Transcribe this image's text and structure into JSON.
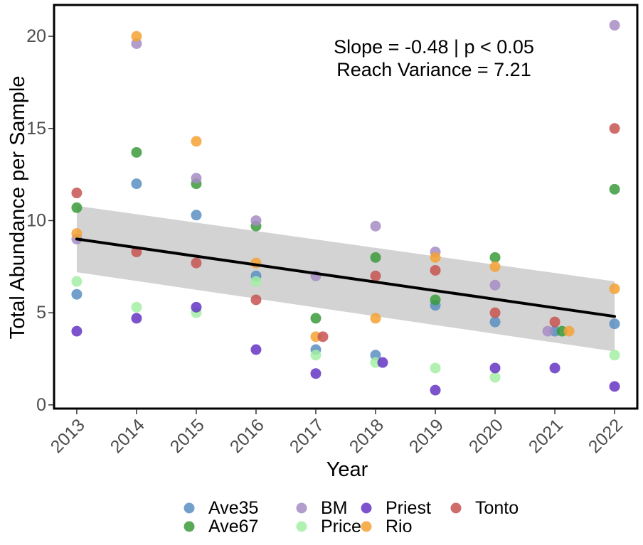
{
  "chart_data": {
    "type": "scatter",
    "xlabel": "Year",
    "ylabel": "Total Abundance per Sample",
    "xlim": [
      2012.62,
      2022.38
    ],
    "ylim": [
      -0.2,
      21.7
    ],
    "x_ticks": [
      2013,
      2014,
      2015,
      2016,
      2017,
      2018,
      2019,
      2020,
      2021,
      2022
    ],
    "y_ticks": [
      0,
      5,
      10,
      15,
      20
    ],
    "grid": false,
    "legend_position": "bottom",
    "annotation": {
      "line1": "Slope = -0.48 | p < 0.05",
      "line2": "Reach Variance = 7.21"
    },
    "trend": {
      "x": [
        2013,
        2022
      ],
      "y": [
        9.0,
        4.8
      ],
      "ci_lower": [
        7.2,
        2.9
      ],
      "ci_upper": [
        10.8,
        6.7
      ],
      "color": "#000000",
      "band_color": "#d3d3d3"
    },
    "series": [
      {
        "name": "Ave35",
        "color": "#5b8ec2",
        "points": [
          [
            2013,
            6.0
          ],
          [
            2014,
            12.0
          ],
          [
            2015,
            10.3
          ],
          [
            2016,
            7.0
          ],
          [
            2017,
            3.0
          ],
          [
            2018,
            2.7
          ],
          [
            2019,
            5.4
          ],
          [
            2020,
            4.5
          ],
          [
            2021,
            4.0
          ],
          [
            2022,
            4.4
          ]
        ]
      },
      {
        "name": "Ave67",
        "color": "#3b9a3b",
        "points": [
          [
            2013,
            10.7
          ],
          [
            2014,
            13.7
          ],
          [
            2015,
            12.0
          ],
          [
            2016,
            9.7
          ],
          [
            2017,
            4.7
          ],
          [
            2018,
            8.0
          ],
          [
            2019,
            5.7
          ],
          [
            2020,
            8.0
          ],
          [
            2021,
            4.0
          ],
          [
            2022,
            11.7
          ]
        ]
      },
      {
        "name": "BM",
        "color": "#a58cc4",
        "points": [
          [
            2013,
            9.0
          ],
          [
            2014,
            19.6
          ],
          [
            2015,
            12.3
          ],
          [
            2016,
            10.0
          ],
          [
            2017,
            7.0
          ],
          [
            2018,
            9.7
          ],
          [
            2019,
            8.3
          ],
          [
            2020,
            6.5
          ],
          [
            2021,
            4.0
          ],
          [
            2022,
            20.6
          ]
        ]
      },
      {
        "name": "Price",
        "color": "#a3eea3",
        "points": [
          [
            2013,
            6.7
          ],
          [
            2014,
            5.3
          ],
          [
            2015,
            5.0
          ],
          [
            2016,
            6.7
          ],
          [
            2017,
            2.7
          ],
          [
            2018,
            2.3
          ],
          [
            2019,
            2.0
          ],
          [
            2020,
            1.5
          ],
          [
            2022,
            2.7
          ]
        ]
      },
      {
        "name": "Priest",
        "color": "#6535c3",
        "points": [
          [
            2013,
            4.0
          ],
          [
            2014,
            4.7
          ],
          [
            2015,
            5.3
          ],
          [
            2016,
            3.0
          ],
          [
            2017,
            1.7
          ],
          [
            2018,
            2.3
          ],
          [
            2019,
            0.8
          ],
          [
            2020,
            2.0
          ],
          [
            2021,
            2.0
          ],
          [
            2022,
            1.0
          ]
        ]
      },
      {
        "name": "Rio",
        "color": "#f5a132",
        "points": [
          [
            2013,
            9.3
          ],
          [
            2014,
            20.0
          ],
          [
            2015,
            14.3
          ],
          [
            2016,
            7.7
          ],
          [
            2017,
            3.7
          ],
          [
            2018,
            4.7
          ],
          [
            2019,
            8.0
          ],
          [
            2020,
            7.5
          ],
          [
            2021,
            4.0
          ],
          [
            2022,
            6.3
          ]
        ]
      },
      {
        "name": "Tonto",
        "color": "#c75450",
        "points": [
          [
            2013,
            11.5
          ],
          [
            2014,
            8.3
          ],
          [
            2015,
            7.7
          ],
          [
            2016,
            5.7
          ],
          [
            2017,
            3.7
          ],
          [
            2018,
            7.0
          ],
          [
            2019,
            7.3
          ],
          [
            2020,
            5.0
          ],
          [
            2021,
            4.5
          ],
          [
            2022,
            15.0
          ]
        ]
      }
    ]
  }
}
